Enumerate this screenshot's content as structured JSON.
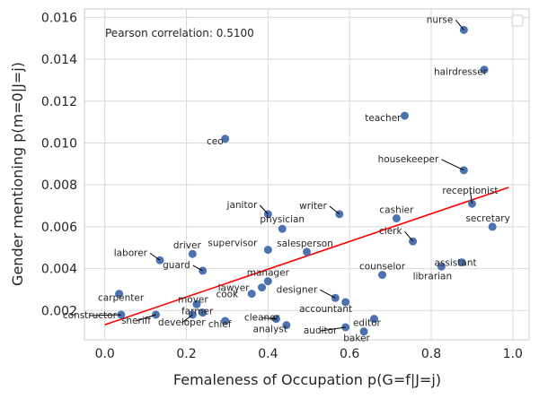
{
  "chart_data": {
    "type": "scatter",
    "title": "",
    "xlabel": "Femaleness of Occupation p(G=f|J=j)",
    "ylabel": "Gender mentioning p(m=0|J=j)",
    "xlim": [
      -0.05,
      1.04
    ],
    "ylim": [
      0.0006,
      0.0164
    ],
    "xticks": [
      0.0,
      0.2,
      0.4,
      0.6,
      0.8,
      1.0
    ],
    "xtick_labels": [
      "0.0",
      "0.2",
      "0.4",
      "0.6",
      "0.8",
      "1.0"
    ],
    "yticks": [
      0.002,
      0.004,
      0.006,
      0.008,
      0.01,
      0.012,
      0.014,
      0.016
    ],
    "ytick_labels": [
      "0.002",
      "0.004",
      "0.006",
      "0.008",
      "0.010",
      "0.012",
      "0.014",
      "0.016"
    ],
    "grid": true,
    "annotation": "Pearson correlation: 0.5100",
    "point_color": "#4c72b0",
    "fit_color": "#ff0000",
    "fit_line": {
      "x": [
        0.0,
        0.99
      ],
      "y": [
        0.00132,
        0.00788
      ]
    },
    "points": [
      {
        "label": "nurse",
        "x": 0.88,
        "y": 0.0154
      },
      {
        "label": "hairdresser",
        "x": 0.93,
        "y": 0.0135
      },
      {
        "label": "teacher",
        "x": 0.735,
        "y": 0.0113
      },
      {
        "label": "ceo",
        "x": 0.295,
        "y": 0.0102
      },
      {
        "label": "housekeeper",
        "x": 0.88,
        "y": 0.0087
      },
      {
        "label": "receptionist",
        "x": 0.9,
        "y": 0.0071
      },
      {
        "label": "secretary",
        "x": 0.95,
        "y": 0.006
      },
      {
        "label": "janitor",
        "x": 0.4,
        "y": 0.0066
      },
      {
        "label": "writer",
        "x": 0.575,
        "y": 0.0066
      },
      {
        "label": "physician",
        "x": 0.435,
        "y": 0.0059
      },
      {
        "label": "cashier",
        "x": 0.715,
        "y": 0.0064
      },
      {
        "label": "clerk",
        "x": 0.755,
        "y": 0.0053
      },
      {
        "label": "supervisor",
        "x": 0.4,
        "y": 0.0049
      },
      {
        "label": "salesperson",
        "x": 0.495,
        "y": 0.0048
      },
      {
        "label": "driver",
        "x": 0.215,
        "y": 0.0047
      },
      {
        "label": "laborer",
        "x": 0.135,
        "y": 0.0044
      },
      {
        "label": "guard",
        "x": 0.24,
        "y": 0.0039
      },
      {
        "label": "assistant",
        "x": 0.875,
        "y": 0.0043
      },
      {
        "label": "librarian",
        "x": 0.825,
        "y": 0.0041
      },
      {
        "label": "counselor",
        "x": 0.68,
        "y": 0.0037
      },
      {
        "label": "manager",
        "x": 0.4,
        "y": 0.0034
      },
      {
        "label": "lawyer",
        "x": 0.385,
        "y": 0.0031
      },
      {
        "label": "cook",
        "x": 0.36,
        "y": 0.0028
      },
      {
        "label": "designer",
        "x": 0.565,
        "y": 0.0026
      },
      {
        "label": "accountant",
        "x": 0.59,
        "y": 0.0024
      },
      {
        "label": "carpenter",
        "x": 0.035,
        "y": 0.0028
      },
      {
        "label": "mover",
        "x": 0.225,
        "y": 0.0023
      },
      {
        "label": "farmer",
        "x": 0.24,
        "y": 0.0019
      },
      {
        "label": "constructor",
        "x": 0.04,
        "y": 0.0018
      },
      {
        "label": "sheriff",
        "x": 0.125,
        "y": 0.0018
      },
      {
        "label": "developer",
        "x": 0.215,
        "y": 0.0018
      },
      {
        "label": "chief",
        "x": 0.295,
        "y": 0.0015
      },
      {
        "label": "cleaner",
        "x": 0.42,
        "y": 0.0016
      },
      {
        "label": "analyst",
        "x": 0.445,
        "y": 0.0013
      },
      {
        "label": "editor",
        "x": 0.66,
        "y": 0.0016
      },
      {
        "label": "auditor",
        "x": 0.59,
        "y": 0.0012
      },
      {
        "label": "baker",
        "x": 0.635,
        "y": 0.001
      }
    ]
  }
}
